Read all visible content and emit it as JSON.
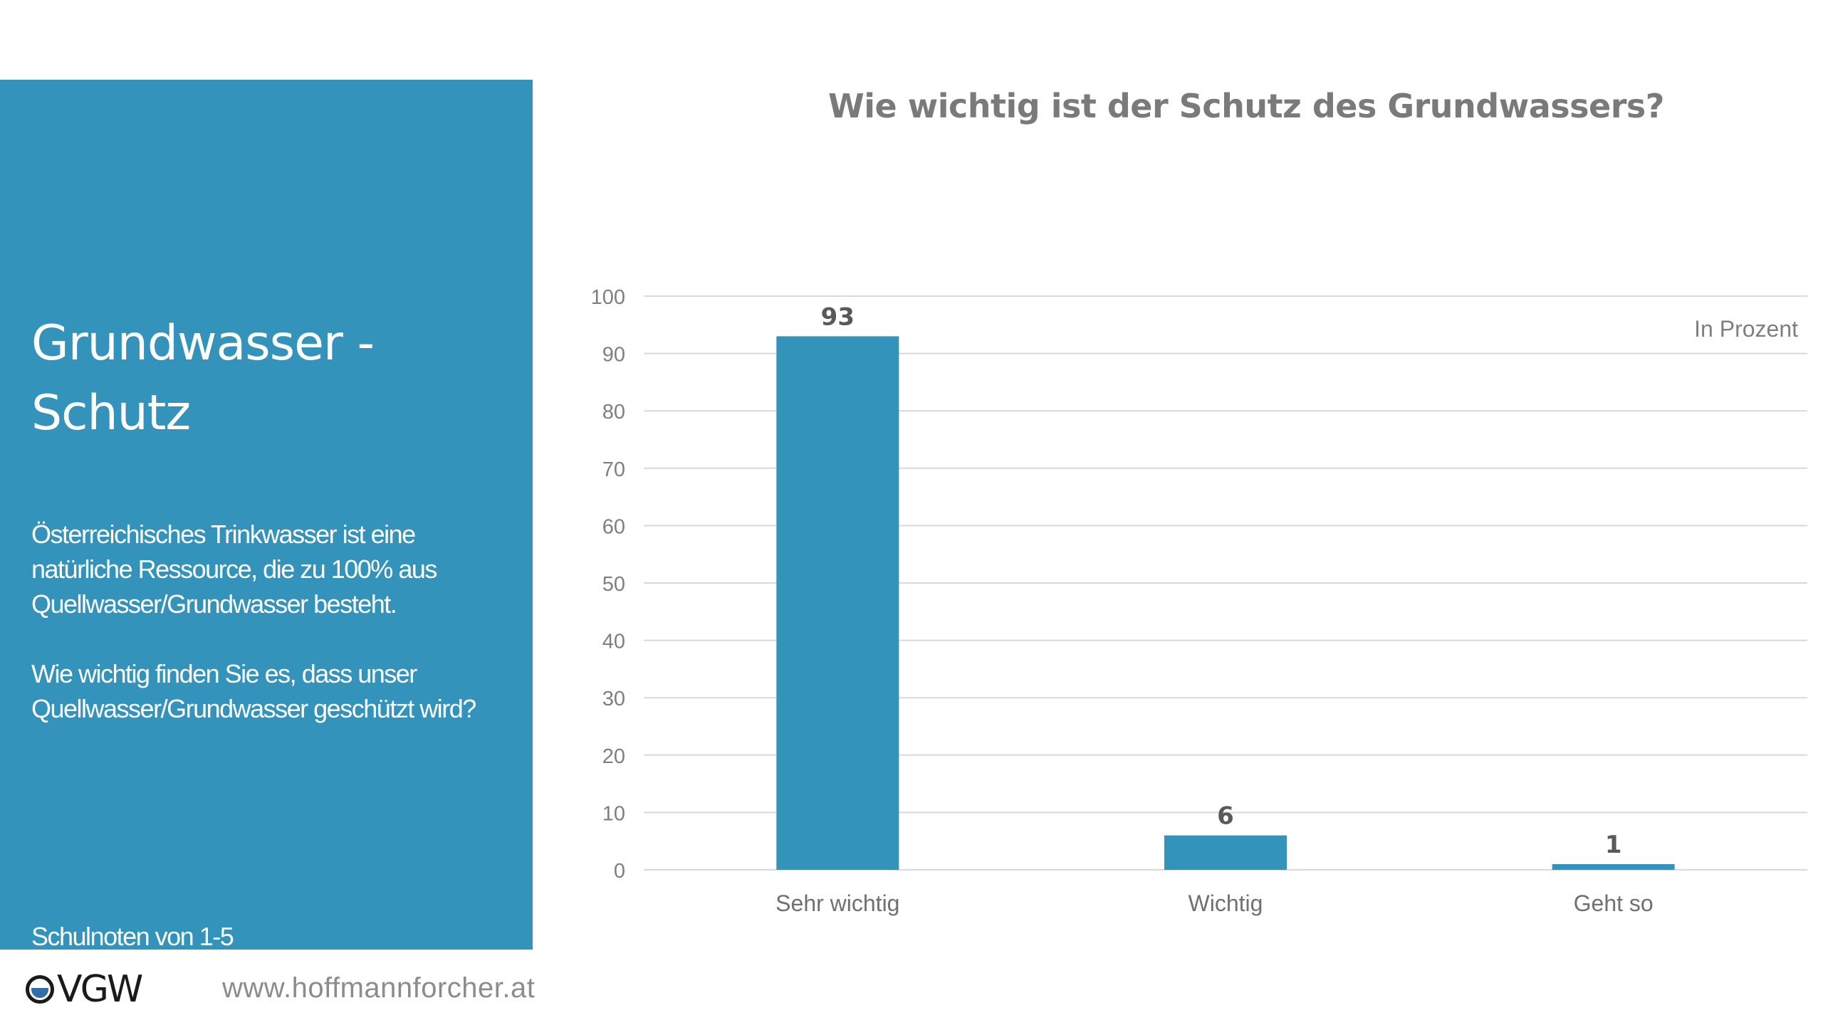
{
  "panel": {
    "title_line1": "Grundwasser -",
    "title_line2": "Schutz",
    "paragraph1": "Österreichisches Trinkwasser ist eine natürliche Ressource, die zu 100% aus Quellwasser/Grundwasser besteht.",
    "paragraph2": "Wie wichtig finden Sie es, dass unser Quellwasser/Grundwasser geschützt wird?",
    "note": "Schulnoten von 1-5",
    "background": "#3493bb"
  },
  "chart_data": {
    "type": "bar",
    "title": "Wie wichtig ist der Schutz des Grundwassers?",
    "unit_note": "In Prozent",
    "categories": [
      "Sehr wichtig",
      "Wichtig",
      "Geht so"
    ],
    "values": [
      93,
      6,
      1
    ],
    "ylim": [
      0,
      100
    ],
    "yticks": [
      0,
      10,
      20,
      30,
      40,
      50,
      60,
      70,
      80,
      90,
      100
    ],
    "grid": true,
    "bar_color": "#3493bb",
    "xlabel": "",
    "ylabel": ""
  },
  "footer": {
    "logo_text": "VGW",
    "logo_icon": "ovgw-logo-icon",
    "url": "www.hoffmannforcher.at"
  }
}
